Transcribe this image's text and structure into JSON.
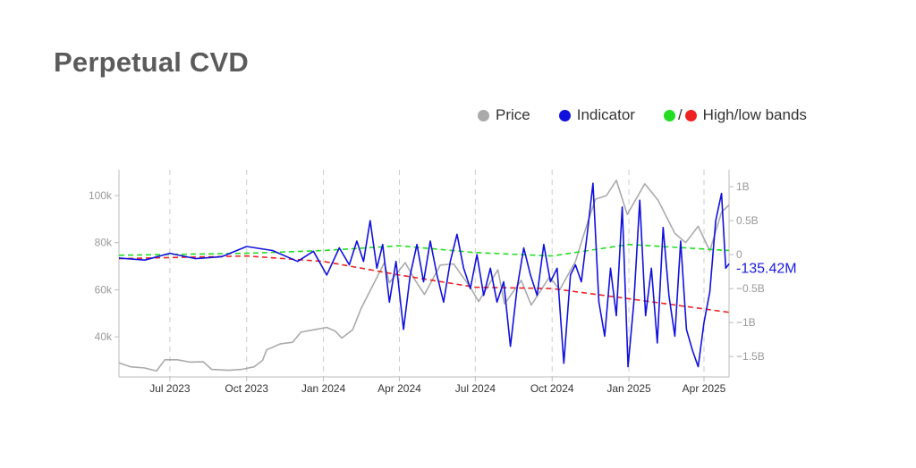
{
  "title": "Perpetual CVD",
  "legend": {
    "price": "Price",
    "indicator": "Indicator",
    "bands_sep": "/",
    "bands": "High/low bands"
  },
  "colors": {
    "price": "#aaaaaa",
    "indicator": "#1111dd",
    "high_band": "#22dd22",
    "low_band": "#ee2222",
    "grid": "#cccccc",
    "axis": "#bbbbbb",
    "title": "#5b5b5b"
  },
  "current_value_label": "-135.42M",
  "chart_data": {
    "type": "line",
    "x_axis": {
      "ticks": [
        "Jul 2023",
        "Oct 2023",
        "Jan 2024",
        "Apr 2024",
        "Jul 2024",
        "Oct 2024",
        "Jan 2025",
        "Apr 2025"
      ],
      "tick_dates": [
        "2023-07-01",
        "2023-10-01",
        "2024-01-01",
        "2024-04-01",
        "2024-07-01",
        "2024-10-01",
        "2025-01-01",
        "2025-04-01"
      ],
      "range": [
        "2023-05-01",
        "2025-05-01"
      ],
      "grid": "dashed vertical"
    },
    "y_left": {
      "label": "",
      "ticks": [
        "40k",
        "60k",
        "80k",
        "100k"
      ],
      "tick_values": [
        40000,
        60000,
        80000,
        100000
      ],
      "range": [
        23000,
        111000
      ]
    },
    "y_right": {
      "label": "",
      "ticks": [
        "−1.5B",
        "−1B",
        "−0.5B",
        "0",
        "0.5B",
        "1B"
      ],
      "tick_values": [
        -1500000000,
        -1000000000,
        -500000000,
        0,
        500000000,
        1000000000
      ],
      "range": [
        -1800000000,
        1250000000
      ]
    },
    "series": [
      {
        "name": "Price",
        "axis": "left",
        "points": [
          [
            "2023-05-01",
            29000
          ],
          [
            "2023-05-15",
            27300
          ],
          [
            "2023-06-01",
            26800
          ],
          [
            "2023-06-15",
            25500
          ],
          [
            "2023-06-25",
            30300
          ],
          [
            "2023-07-10",
            30300
          ],
          [
            "2023-07-25",
            29300
          ],
          [
            "2023-08-10",
            29400
          ],
          [
            "2023-08-20",
            26200
          ],
          [
            "2023-09-10",
            25800
          ],
          [
            "2023-09-25",
            26200
          ],
          [
            "2023-10-10",
            27300
          ],
          [
            "2023-10-20",
            30000
          ],
          [
            "2023-10-25",
            34500
          ],
          [
            "2023-11-10",
            37000
          ],
          [
            "2023-11-25",
            37700
          ],
          [
            "2023-12-05",
            42000
          ],
          [
            "2023-12-20",
            43000
          ],
          [
            "2024-01-05",
            44000
          ],
          [
            "2024-01-15",
            42500
          ],
          [
            "2024-01-23",
            39500
          ],
          [
            "2024-02-05",
            43000
          ],
          [
            "2024-02-15",
            52000
          ],
          [
            "2024-02-28",
            61000
          ],
          [
            "2024-03-14",
            71500
          ],
          [
            "2024-03-20",
            63000
          ],
          [
            "2024-04-08",
            71500
          ],
          [
            "2024-04-20",
            64000
          ],
          [
            "2024-05-01",
            58000
          ],
          [
            "2024-05-20",
            70500
          ],
          [
            "2024-06-05",
            71000
          ],
          [
            "2024-06-25",
            61000
          ],
          [
            "2024-07-05",
            55000
          ],
          [
            "2024-07-28",
            68500
          ],
          [
            "2024-08-05",
            54000
          ],
          [
            "2024-08-25",
            64000
          ],
          [
            "2024-09-06",
            53500
          ],
          [
            "2024-09-28",
            65500
          ],
          [
            "2024-10-10",
            60000
          ],
          [
            "2024-10-29",
            72000
          ],
          [
            "2024-11-12",
            88000
          ],
          [
            "2024-11-22",
            98500
          ],
          [
            "2024-12-05",
            100000
          ],
          [
            "2024-12-17",
            106500
          ],
          [
            "2024-12-30",
            92000
          ],
          [
            "2025-01-20",
            105000
          ],
          [
            "2025-02-05",
            98000
          ],
          [
            "2025-02-25",
            84000
          ],
          [
            "2025-03-10",
            80000
          ],
          [
            "2025-03-25",
            87000
          ],
          [
            "2025-04-08",
            76500
          ],
          [
            "2025-04-22",
            93000
          ],
          [
            "2025-05-01",
            96000
          ]
        ]
      },
      {
        "name": "Indicator",
        "axis": "right",
        "points": [
          [
            "2023-05-01",
            -50000000
          ],
          [
            "2023-06-01",
            -80000000
          ],
          [
            "2023-07-01",
            20000000
          ],
          [
            "2023-08-01",
            -60000000
          ],
          [
            "2023-09-01",
            -30000000
          ],
          [
            "2023-10-01",
            120000000
          ],
          [
            "2023-11-01",
            60000000
          ],
          [
            "2023-12-01",
            -100000000
          ],
          [
            "2023-12-20",
            50000000
          ],
          [
            "2024-01-05",
            -300000000
          ],
          [
            "2024-01-20",
            100000000
          ],
          [
            "2024-02-01",
            -150000000
          ],
          [
            "2024-02-10",
            200000000
          ],
          [
            "2024-02-18",
            -100000000
          ],
          [
            "2024-02-26",
            500000000
          ],
          [
            "2024-03-05",
            -200000000
          ],
          [
            "2024-03-12",
            150000000
          ],
          [
            "2024-03-20",
            -700000000
          ],
          [
            "2024-03-28",
            -100000000
          ],
          [
            "2024-04-06",
            -1100000000
          ],
          [
            "2024-04-14",
            -300000000
          ],
          [
            "2024-04-22",
            150000000
          ],
          [
            "2024-04-30",
            -400000000
          ],
          [
            "2024-05-08",
            200000000
          ],
          [
            "2024-05-16",
            -300000000
          ],
          [
            "2024-05-24",
            -700000000
          ],
          [
            "2024-06-01",
            -100000000
          ],
          [
            "2024-06-09",
            300000000
          ],
          [
            "2024-06-17",
            -200000000
          ],
          [
            "2024-06-25",
            -500000000
          ],
          [
            "2024-07-03",
            0
          ],
          [
            "2024-07-11",
            -600000000
          ],
          [
            "2024-07-19",
            -200000000
          ],
          [
            "2024-07-27",
            -700000000
          ],
          [
            "2024-08-04",
            -400000000
          ],
          [
            "2024-08-12",
            -1350000000
          ],
          [
            "2024-08-20",
            -500000000
          ],
          [
            "2024-08-28",
            100000000
          ],
          [
            "2024-09-05",
            -300000000
          ],
          [
            "2024-09-13",
            -600000000
          ],
          [
            "2024-09-21",
            150000000
          ],
          [
            "2024-09-29",
            -400000000
          ],
          [
            "2024-10-07",
            -200000000
          ],
          [
            "2024-10-15",
            -1600000000
          ],
          [
            "2024-10-23",
            -300000000
          ],
          [
            "2024-10-29",
            -150000000
          ],
          [
            "2024-11-05",
            -400000000
          ],
          [
            "2024-11-12",
            300000000
          ],
          [
            "2024-11-19",
            1050000000
          ],
          [
            "2024-11-26",
            -700000000
          ],
          [
            "2024-12-03",
            -1200000000
          ],
          [
            "2024-12-10",
            -200000000
          ],
          [
            "2024-12-17",
            -900000000
          ],
          [
            "2024-12-24",
            700000000
          ],
          [
            "2024-12-31",
            -1650000000
          ],
          [
            "2025-01-07",
            -700000000
          ],
          [
            "2025-01-14",
            800000000
          ],
          [
            "2025-01-21",
            -900000000
          ],
          [
            "2025-01-28",
            -200000000
          ],
          [
            "2025-02-04",
            -1300000000
          ],
          [
            "2025-02-11",
            400000000
          ],
          [
            "2025-02-18",
            -600000000
          ],
          [
            "2025-02-25",
            -1200000000
          ],
          [
            "2025-03-04",
            200000000
          ],
          [
            "2025-03-11",
            -1100000000
          ],
          [
            "2025-03-18",
            -1400000000
          ],
          [
            "2025-03-25",
            -1650000000
          ],
          [
            "2025-04-01",
            -1000000000
          ],
          [
            "2025-04-08",
            -550000000
          ],
          [
            "2025-04-15",
            500000000
          ],
          [
            "2025-04-22",
            900000000
          ],
          [
            "2025-04-27",
            -200000000
          ],
          [
            "2025-05-01",
            -135420000
          ]
        ]
      },
      {
        "name": "High band",
        "axis": "right",
        "style": "dashed",
        "points": [
          [
            "2023-05-01",
            -10000000
          ],
          [
            "2023-10-01",
            20000000
          ],
          [
            "2024-01-01",
            60000000
          ],
          [
            "2024-04-01",
            130000000
          ],
          [
            "2024-07-01",
            30000000
          ],
          [
            "2024-10-01",
            -20000000
          ],
          [
            "2025-01-01",
            150000000
          ],
          [
            "2025-05-01",
            60000000
          ]
        ]
      },
      {
        "name": "Low band",
        "axis": "right",
        "style": "dashed",
        "points": [
          [
            "2023-05-01",
            -60000000
          ],
          [
            "2023-10-01",
            -20000000
          ],
          [
            "2024-01-01",
            -100000000
          ],
          [
            "2024-04-01",
            -300000000
          ],
          [
            "2024-07-01",
            -480000000
          ],
          [
            "2024-10-01",
            -500000000
          ],
          [
            "2025-01-01",
            -650000000
          ],
          [
            "2025-05-01",
            -850000000
          ]
        ]
      }
    ]
  }
}
